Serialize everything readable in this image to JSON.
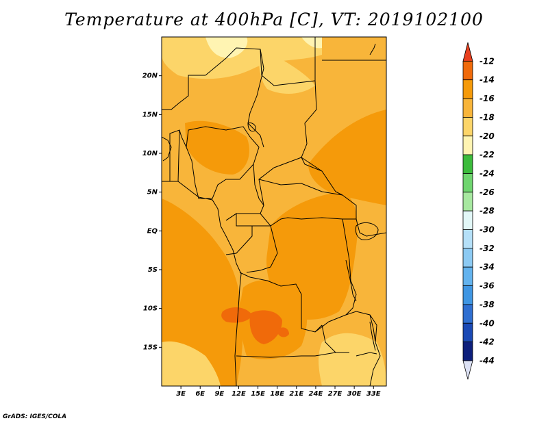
{
  "title": "Temperature at 400hPa [C], VT: 2019102100",
  "credit": "GrADS: IGES/COLA",
  "map": {
    "lon_range": [
      0,
      35
    ],
    "lat_range": [
      -20,
      25
    ],
    "lat_ticks": [
      {
        "value": 20,
        "label": "20N"
      },
      {
        "value": 15,
        "label": "15N"
      },
      {
        "value": 10,
        "label": "10N"
      },
      {
        "value": 5,
        "label": "5N"
      },
      {
        "value": 0,
        "label": "EQ"
      },
      {
        "value": -5,
        "label": "5S"
      },
      {
        "value": -10,
        "label": "10S"
      },
      {
        "value": -15,
        "label": "15S"
      }
    ],
    "lon_ticks": [
      {
        "value": 3,
        "label": "3E"
      },
      {
        "value": 6,
        "label": "6E"
      },
      {
        "value": 9,
        "label": "9E"
      },
      {
        "value": 12,
        "label": "12E"
      },
      {
        "value": 15,
        "label": "15E"
      },
      {
        "value": 18,
        "label": "18E"
      },
      {
        "value": 21,
        "label": "21E"
      },
      {
        "value": 24,
        "label": "24E"
      },
      {
        "value": 27,
        "label": "27E"
      },
      {
        "value": 30,
        "label": "30E"
      },
      {
        "value": 33,
        "label": "33E"
      }
    ]
  },
  "colorbar": {
    "labels": [
      "-12",
      "-14",
      "-16",
      "-18",
      "-20",
      "-22",
      "-24",
      "-26",
      "-28",
      "-30",
      "-32",
      "-34",
      "-36",
      "-38",
      "-40",
      "-42",
      "-44"
    ],
    "colors": [
      "#e8401f",
      "#f06a0a",
      "#f59a0a",
      "#f8b53a",
      "#fcd569",
      "#fff4b2",
      "#3cbb3c",
      "#6fd56f",
      "#a7e8a0",
      "#e2f7f7",
      "#b5e0f8",
      "#8ccaf3",
      "#63b3ee",
      "#3f96e3",
      "#2f6fd1",
      "#1a49b5",
      "#0d1f7c",
      "#dde2f5"
    ]
  },
  "fields": {
    "base_color": "#f8b53a",
    "warm_color": "#f59a0a",
    "cool_color": "#fcd569",
    "cooler_color": "#fff4b2",
    "hot_color": "#f06a0a"
  }
}
